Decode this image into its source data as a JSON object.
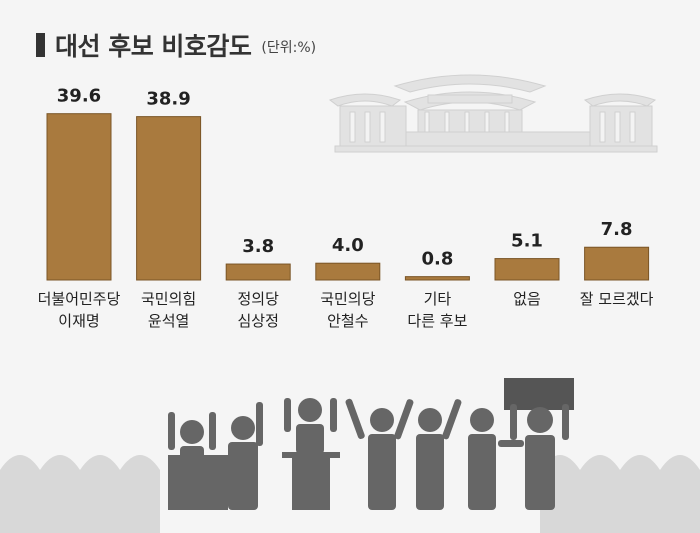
{
  "title": "대선 후보 비호감도",
  "unit": "(단위:%)",
  "colors": {
    "bar": "#a97a3e",
    "bar_edge": "#7a5526",
    "text": "#222222",
    "illustration": "#666666",
    "crowd": "#d8d8d8",
    "building": "#e2e2e2"
  },
  "chart_data": {
    "type": "bar",
    "title": "대선 후보 비호감도",
    "unit": "%",
    "categories": [
      [
        "더불어민주당",
        "이재명"
      ],
      [
        "국민의힘",
        "윤석열"
      ],
      [
        "정의당",
        "심상정"
      ],
      [
        "국민의당",
        "안철수"
      ],
      [
        "기타",
        "다른 후보"
      ],
      [
        "없음"
      ],
      [
        "잘 모르겠다"
      ]
    ],
    "values": [
      39.6,
      38.9,
      3.8,
      4.0,
      0.8,
      5.1,
      7.8
    ],
    "value_labels": [
      "39.6",
      "38.9",
      "3.8",
      "4.0",
      "0.8",
      "5.1",
      "7.8"
    ],
    "ylim": [
      0,
      45
    ],
    "grid": false,
    "legend": "none"
  }
}
